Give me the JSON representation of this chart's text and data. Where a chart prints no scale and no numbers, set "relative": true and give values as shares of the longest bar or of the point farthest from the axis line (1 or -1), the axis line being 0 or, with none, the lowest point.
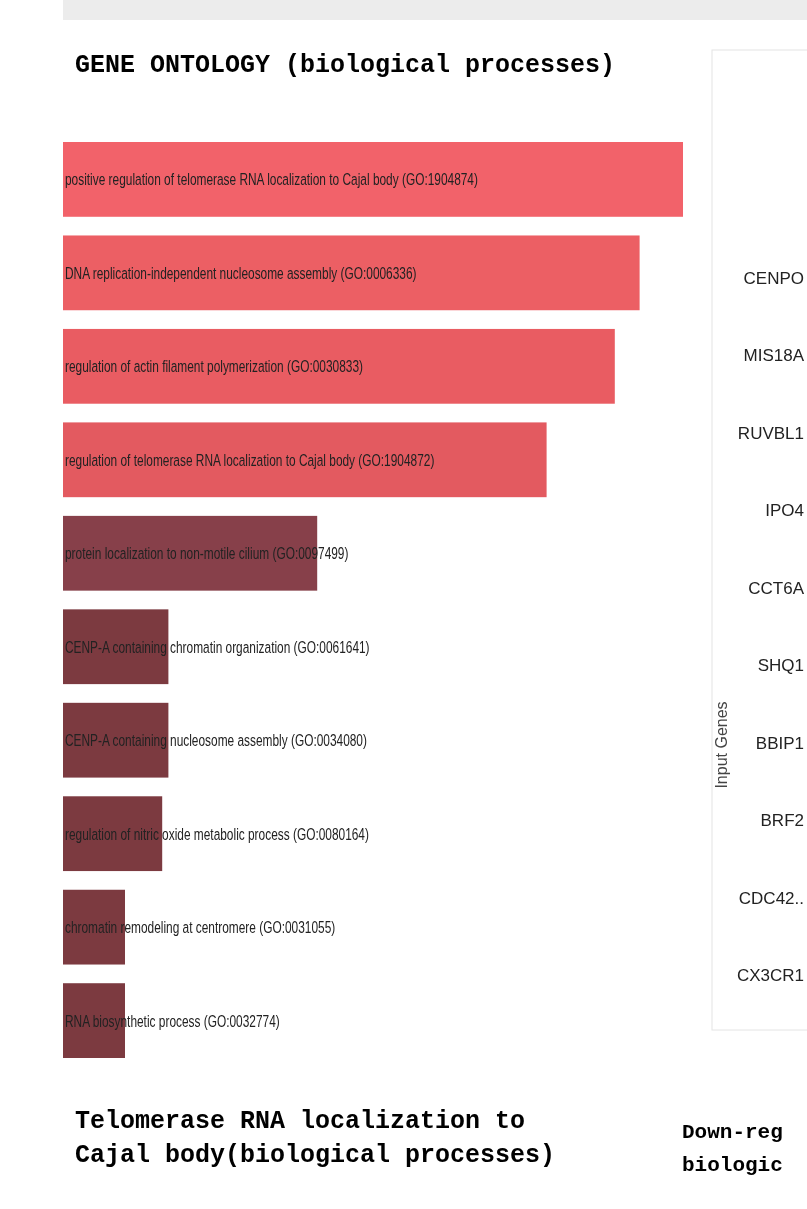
{
  "chart_data": [
    {
      "type": "bar",
      "orientation": "horizontal",
      "relative": true,
      "title": "GENE ONTOLOGY (biological processes)",
      "categories": [
        "positive regulation of telomerase RNA localization to Cajal body (GO:1904874)",
        "DNA replication-independent nucleosome assembly (GO:0006336)",
        "regulation of actin filament polymerization (GO:0030833)",
        "regulation of telomerase RNA localization to Cajal body (GO:1904872)",
        "protein localization to non-motile cilium (GO:0097499)",
        "CENP-A containing chromatin organization (GO:0061641)",
        "CENP-A containing nucleosome assembly (GO:0034080)",
        "regulation of nitric oxide metabolic process (GO:0080164)",
        "chromatin remodeling at centromere (GO:0031055)",
        "RNA biosynthetic process (GO:0032774)"
      ],
      "values": [
        1,
        0.93,
        0.89,
        0.78,
        0.41,
        0.17,
        0.17,
        0.16,
        0.1,
        0.1
      ],
      "colors": [
        "#f2626a",
        "#ec5f64",
        "#e95c62",
        "#e35a60",
        "#87404a",
        "#7c3a40",
        "#7c3a40",
        "#7c3a40",
        "#7c3a40",
        "#7c3a40"
      ],
      "annotations": [
        "Telomerase RNA localization to Cajal body(biological processes)"
      ]
    },
    {
      "type": "other",
      "ylabel": "Input Genes",
      "categories": [
        "CENPO",
        "MIS18A",
        "RUVBL1",
        "IPO4",
        "CCT6A",
        "SHQ1",
        "BBIP1",
        "BRF2",
        "CDC42..",
        "CX3CR1"
      ],
      "annotations": [
        "Down-reg",
        "biologic"
      ]
    }
  ]
}
